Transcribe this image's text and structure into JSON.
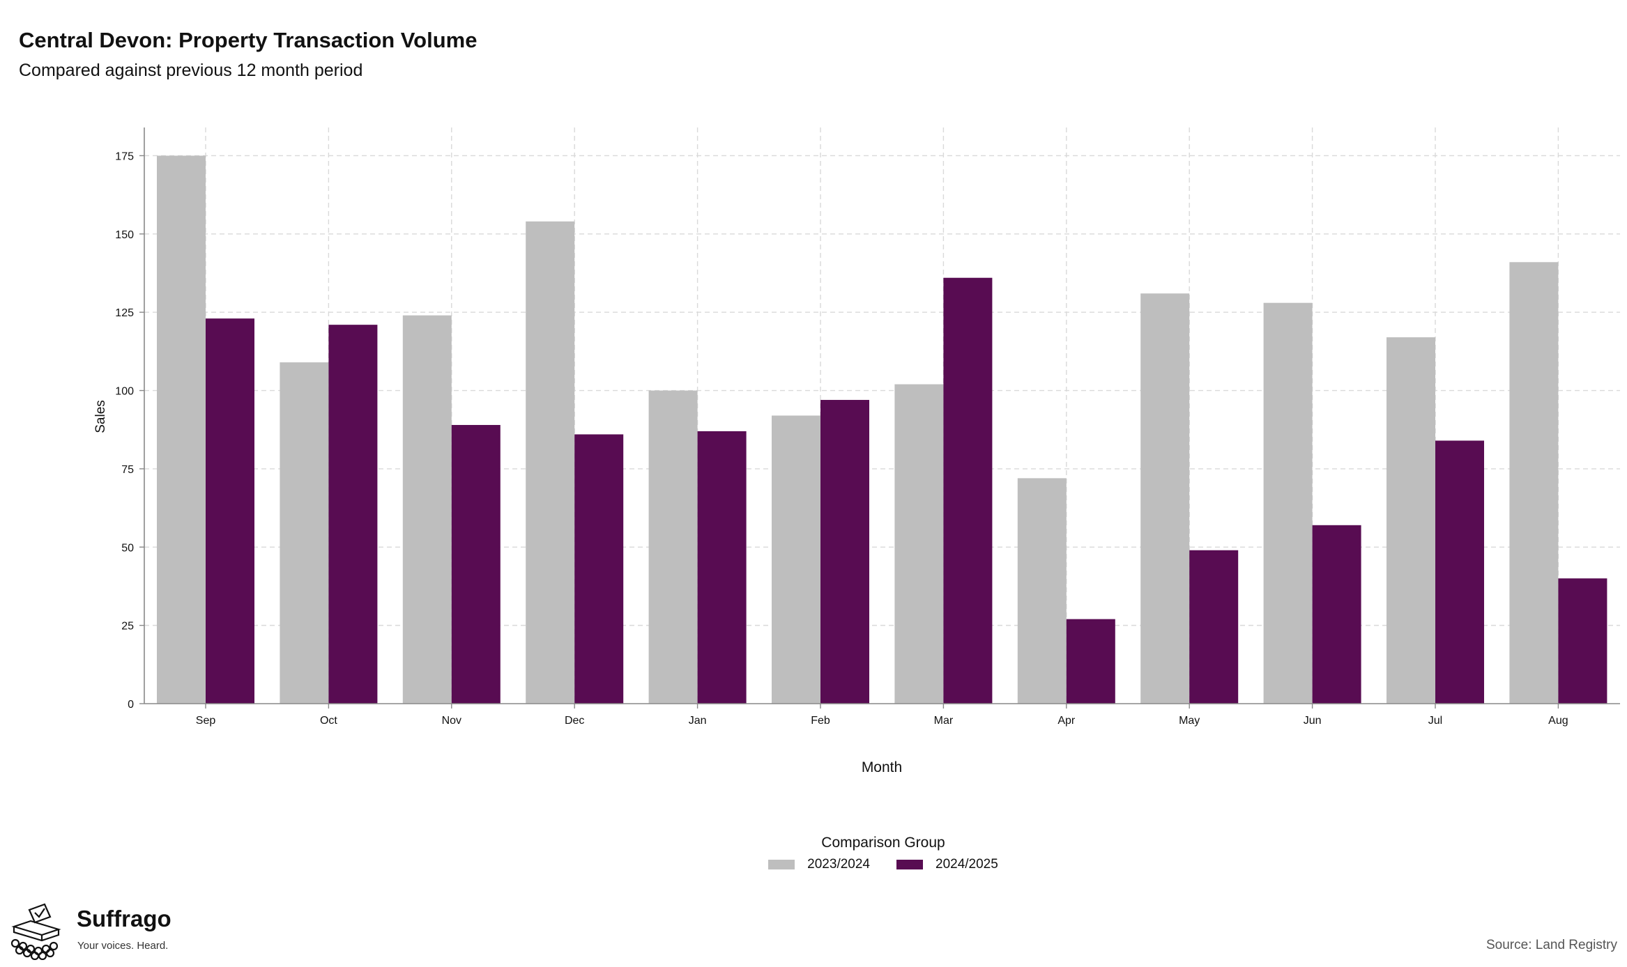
{
  "title": "Central Devon: Property Transaction Volume",
  "subtitle": "Compared against previous 12 month period",
  "legend": {
    "title": "Comparison Group"
  },
  "brand": {
    "name": "Suffrago",
    "tagline": "Your voices. Heard."
  },
  "source": "Source: Land Registry",
  "chart_data": {
    "type": "bar",
    "xlabel": "Month",
    "ylabel": "Sales",
    "ylim": [
      0,
      184
    ],
    "yticks": [
      0,
      25,
      50,
      75,
      100,
      125,
      150,
      175
    ],
    "grid": true,
    "legend_position": "bottom",
    "categories": [
      "Sep",
      "Oct",
      "Nov",
      "Dec",
      "Jan",
      "Feb",
      "Mar",
      "Apr",
      "May",
      "Jun",
      "Jul",
      "Aug"
    ],
    "series": [
      {
        "name": "2023/2024",
        "color": "#bebebe",
        "values": [
          175,
          109,
          124,
          154,
          100,
          92,
          102,
          72,
          131,
          128,
          117,
          141
        ]
      },
      {
        "name": "2024/2025",
        "color": "#580c52",
        "values": [
          123,
          121,
          89,
          86,
          87,
          97,
          136,
          27,
          49,
          57,
          84,
          40
        ]
      }
    ]
  }
}
